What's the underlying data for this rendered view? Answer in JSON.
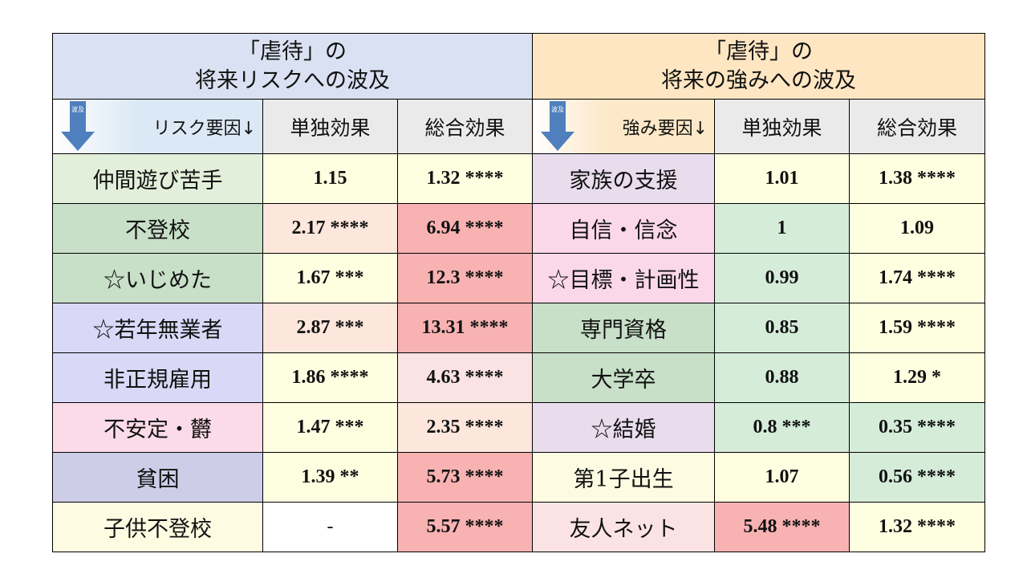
{
  "risk_title": {
    "line1": "「虐待」の",
    "line2": "将来リスクへの波及"
  },
  "strength_title": {
    "line1": "「虐待」の",
    "line2": "将来の強みへの波及"
  },
  "arrow_label": "波及",
  "headers": {
    "risk_factor": "リスク要因↓",
    "strength_factor": "強み要因↓",
    "single": "単独効果",
    "total": "総合効果"
  },
  "rows": [
    {
      "risk": {
        "factor": "仲間遊び苦手",
        "single": "1.15",
        "total": "1.32 ****"
      },
      "strength": {
        "factor": "家族の支援",
        "single": "1.01",
        "total": "1.38 ****"
      }
    },
    {
      "risk": {
        "factor": "不登校",
        "single": "2.17 ****",
        "total": "6.94 ****"
      },
      "strength": {
        "factor": "自信・信念",
        "single": "1",
        "total": "1.09"
      }
    },
    {
      "risk": {
        "factor": "☆いじめた",
        "single": "1.67 ***",
        "total": "12.3 ****"
      },
      "strength": {
        "factor": "☆目標・計画性",
        "single": "0.99",
        "total": "1.74 ****"
      }
    },
    {
      "risk": {
        "factor": "☆若年無業者",
        "single": "2.87 ***",
        "total": "13.31 ****"
      },
      "strength": {
        "factor": "専門資格",
        "single": "0.85",
        "total": "1.59 ****"
      }
    },
    {
      "risk": {
        "factor": "非正規雇用",
        "single": "1.86 ****",
        "total": "4.63 ****"
      },
      "strength": {
        "factor": "大学卒",
        "single": "0.88",
        "total": "1.29 *"
      }
    },
    {
      "risk": {
        "factor": "不安定・欝",
        "single": "1.47 ***",
        "total": "2.35 ****"
      },
      "strength": {
        "factor": "☆結婚",
        "single": "0.8 ***",
        "total": "0.35 ****"
      }
    },
    {
      "risk": {
        "factor": "貧困",
        "single": "1.39 **",
        "total": "5.73 ****"
      },
      "strength": {
        "factor": "第1子出生",
        "single": "1.07",
        "total": "0.56 ****"
      }
    },
    {
      "risk": {
        "factor": "子供不登校",
        "single": "-",
        "total": "5.57 ****"
      },
      "strength": {
        "factor": "友人ネット",
        "single": "5.48 ****",
        "total": "1.32 ****"
      }
    }
  ]
}
